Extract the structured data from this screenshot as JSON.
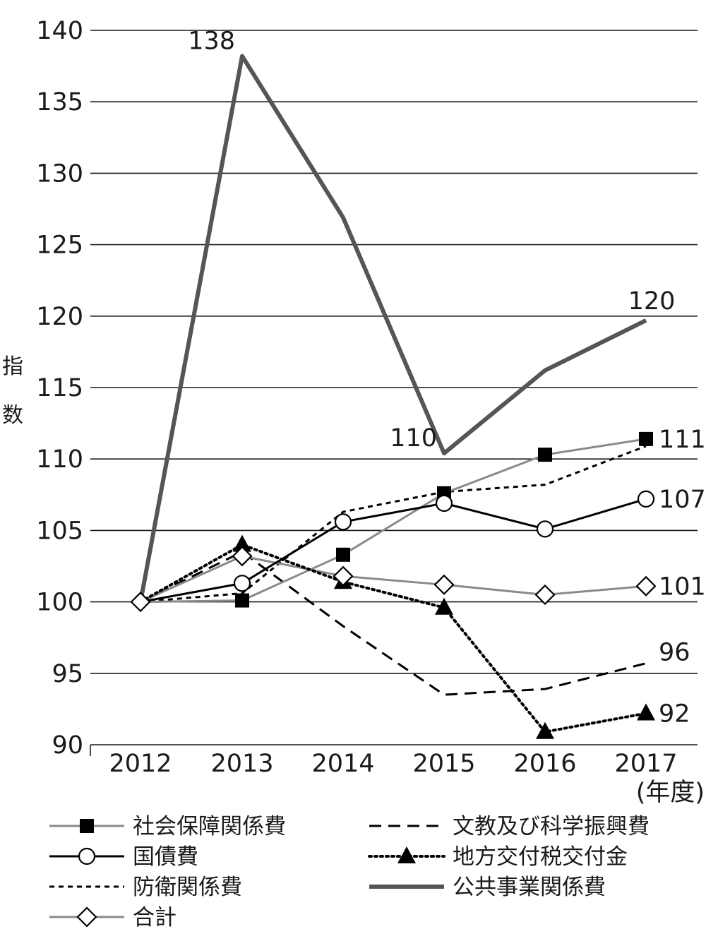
{
  "chart_data": {
    "type": "line",
    "title": "",
    "xlabel": "2017 (年度)",
    "x_unit": "(年度)",
    "ylabel": "指数",
    "ylabel_chars": [
      "指",
      "数"
    ],
    "ylim": [
      90,
      140
    ],
    "yticks": [
      90,
      95,
      100,
      105,
      110,
      115,
      120,
      125,
      130,
      135,
      140
    ],
    "categories": [
      "2012",
      "2013",
      "2014",
      "2015",
      "2016",
      "2017"
    ],
    "grid": true,
    "series": [
      {
        "key": "social",
        "name": "社会保障関係費",
        "values": [
          100,
          100.1,
          103.3,
          107.6,
          110.3,
          111.4
        ],
        "end_label": "111",
        "color": "#808080",
        "marker": "square"
      },
      {
        "key": "bonds",
        "name": "国債費",
        "values": [
          100,
          101.3,
          105.6,
          106.9,
          105.1,
          107.2
        ],
        "end_label": "107",
        "color": "#000000",
        "marker": "circle"
      },
      {
        "key": "defense",
        "name": "防衛関係費",
        "values": [
          100,
          100.6,
          106.3,
          107.7,
          108.2,
          110.9
        ],
        "end_label": "",
        "color": "#000000",
        "marker": "none"
      },
      {
        "key": "total",
        "name": "合計",
        "values": [
          100,
          103.2,
          101.8,
          101.2,
          100.5,
          101.1
        ],
        "end_label": "101",
        "color": "#808080",
        "marker": "diamond"
      },
      {
        "key": "education",
        "name": "文教及び科学振興費",
        "values": [
          100,
          103.5,
          98.3,
          93.5,
          93.9,
          95.7
        ],
        "end_label": "96",
        "color": "#000000",
        "marker": "none"
      },
      {
        "key": "local",
        "name": "地方交付税交付金",
        "values": [
          100,
          104.0,
          101.4,
          99.6,
          90.9,
          92.2
        ],
        "end_label": "92",
        "color": "#000000",
        "marker": "triangle"
      },
      {
        "key": "public",
        "name": "公共事業関係費",
        "values": [
          100,
          138.2,
          126.9,
          110.4,
          116.2,
          119.7
        ],
        "end_label": "120",
        "color": "#555555",
        "marker": "none"
      }
    ],
    "annotations": [
      {
        "series": "public",
        "category": "2013",
        "text": "138"
      },
      {
        "series": "public",
        "category": "2015",
        "text": "110"
      }
    ],
    "legend": {
      "placement": "bottom",
      "left": [
        "social",
        "bonds",
        "defense",
        "total"
      ],
      "right": [
        "education",
        "local",
        "public"
      ]
    }
  }
}
